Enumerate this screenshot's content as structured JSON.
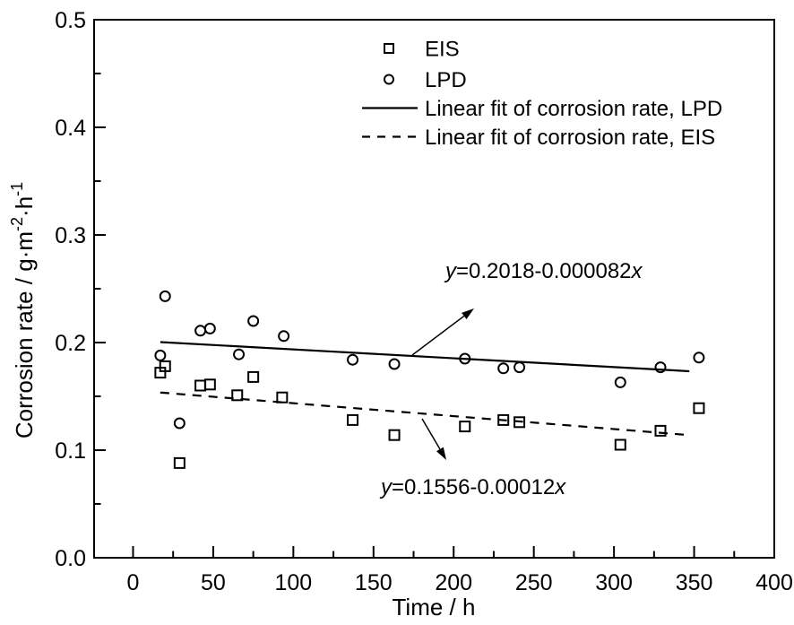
{
  "figure": {
    "background": "#ffffff",
    "foreground": "#000000"
  },
  "chart_data": {
    "type": "scatter",
    "title": "",
    "xlabel": "Time / h",
    "ylabel": "Corrosion rate / g·m⁻²·h⁻¹",
    "ylabel_segments": [
      [
        "Corrosion rate / g·m",
        0
      ],
      [
        "-2",
        1
      ],
      [
        "·h",
        0
      ],
      [
        "-1",
        1
      ]
    ],
    "xlim": [
      -24.3,
      400
    ],
    "ylim": [
      0,
      0.5
    ],
    "x_major_ticks": [
      0,
      50,
      100,
      150,
      200,
      250,
      300,
      350,
      400
    ],
    "x_minor_ticks": [
      25,
      75,
      125,
      175,
      225,
      275,
      325,
      375
    ],
    "y_major_ticks": [
      0.0,
      0.1,
      0.2,
      0.3,
      0.4,
      0.5
    ],
    "y_minor_ticks": [
      0.05,
      0.15,
      0.25,
      0.35,
      0.45
    ],
    "grid": false,
    "legend_position": "top-center-inside",
    "series": [
      {
        "name": "EIS",
        "marker": "square",
        "points": [
          [
            17,
            0.172
          ],
          [
            20,
            0.178
          ],
          [
            29,
            0.088
          ],
          [
            42,
            0.16
          ],
          [
            48,
            0.161
          ],
          [
            65,
            0.151
          ],
          [
            75,
            0.168
          ],
          [
            93,
            0.149
          ],
          [
            137,
            0.128
          ],
          [
            163,
            0.114
          ],
          [
            207,
            0.122
          ],
          [
            231,
            0.128
          ],
          [
            241,
            0.126
          ],
          [
            304,
            0.105
          ],
          [
            329,
            0.118
          ],
          [
            353,
            0.139
          ]
        ]
      },
      {
        "name": "LPD",
        "marker": "circle",
        "points": [
          [
            17,
            0.188
          ],
          [
            20,
            0.243
          ],
          [
            29,
            0.125
          ],
          [
            42,
            0.211
          ],
          [
            48,
            0.213
          ],
          [
            66,
            0.189
          ],
          [
            75,
            0.22
          ],
          [
            94,
            0.206
          ],
          [
            137,
            0.184
          ],
          [
            163,
            0.18
          ],
          [
            207,
            0.185
          ],
          [
            231,
            0.176
          ],
          [
            241,
            0.177
          ],
          [
            304,
            0.163
          ],
          [
            329,
            0.177
          ],
          [
            353,
            0.186
          ]
        ]
      }
    ],
    "fits": [
      {
        "name": "Linear fit of corrosion rate, LPD",
        "style": "solid",
        "equation": "y=0.2018-0.000082x",
        "equation_segments": [
          [
            "y",
            1
          ],
          [
            "=0.2018-0.000082",
            0
          ],
          [
            "x",
            1
          ]
        ],
        "intercept": 0.2018,
        "slope": -8.2e-05,
        "x_start": 17,
        "x_end": 347
      },
      {
        "name": "Linear fit of corrosion rate, EIS",
        "style": "dashed",
        "equation": "y=0.1556-0.00012x",
        "equation_segments": [
          [
            "y",
            1
          ],
          [
            "=0.1556-0.00012",
            0
          ],
          [
            "x",
            1
          ]
        ],
        "intercept": 0.1556,
        "slope": -0.00012,
        "x_start": 17,
        "x_end": 347
      }
    ],
    "legend": {
      "items": [
        {
          "label": "EIS",
          "symbol": "square-marker"
        },
        {
          "label": "LPD",
          "symbol": "circle-marker"
        },
        {
          "label": "Linear fit of corrosion rate, LPD",
          "symbol": "solid-line"
        },
        {
          "label": "Linear fit of corrosion rate, EIS",
          "symbol": "dashed-line"
        }
      ]
    }
  }
}
